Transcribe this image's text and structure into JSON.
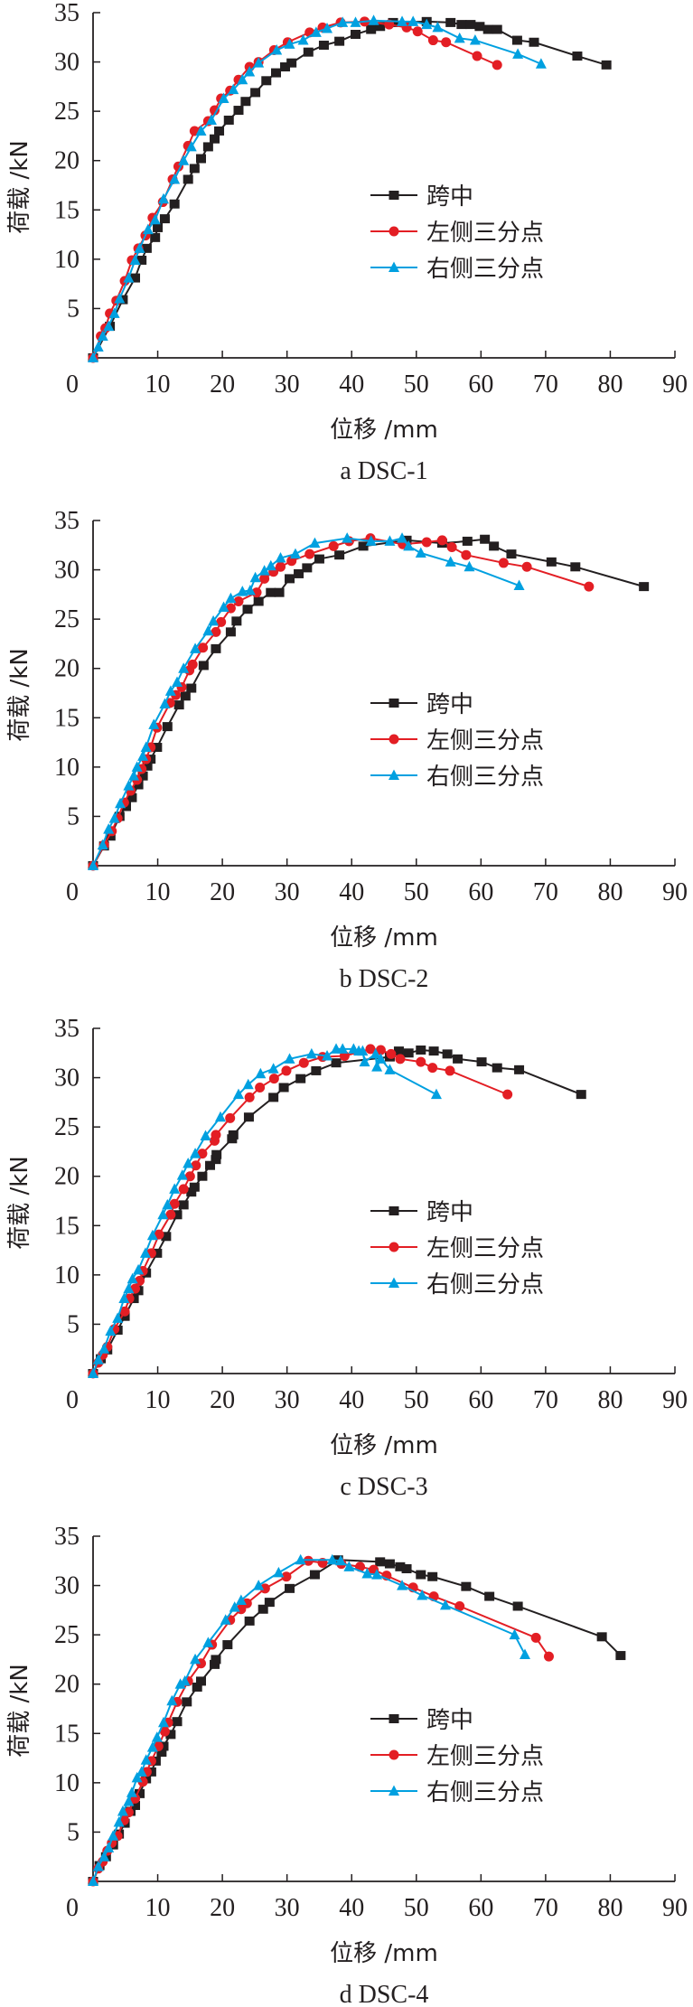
{
  "colors": {
    "axis": "#231f20",
    "midspan": "#231f20",
    "left": "#e31e24",
    "right": "#00a0e0"
  },
  "chart_data": [
    {
      "type": "line",
      "title": "a DSC-1",
      "xlabel": "位移 /mm",
      "ylabel": "荷载 /kN",
      "xlim": [
        0,
        90
      ],
      "ylim": [
        0,
        35
      ],
      "xticks": [
        "0",
        "10",
        "20",
        "30",
        "40",
        "50",
        "60",
        "70",
        "80",
        "90"
      ],
      "yticks": [
        "5",
        "10",
        "15",
        "20",
        "25",
        "30",
        "35"
      ],
      "grid": false,
      "legend_position": "center-right",
      "series": [
        {
          "name": "跨中",
          "marker": "square",
          "x": [
            0,
            2.6,
            4.6,
            6.5,
            7.5,
            8.3,
            9.6,
            10,
            11.1,
            12.6,
            14.7,
            15.7,
            16.7,
            17.8,
            18.8,
            19.5,
            21,
            22.5,
            23.6,
            25.1,
            26.8,
            28.3,
            29.7,
            30.7,
            33.3,
            35.7,
            38.1,
            40.6,
            43,
            44.4,
            46.4,
            51.6,
            55.3,
            57,
            58.4,
            59.8,
            61.1,
            62.5,
            65.6,
            68.2,
            74.9,
            79.4
          ],
          "y": [
            0,
            3.2,
            5.9,
            8.1,
            9.9,
            11.1,
            12.2,
            13.2,
            14.1,
            15.6,
            18.1,
            19.2,
            20.2,
            21.4,
            22.2,
            23,
            24.1,
            25.1,
            26,
            26.9,
            28.1,
            28.9,
            29.5,
            29.9,
            31,
            31.7,
            32.1,
            32.8,
            33.3,
            33.6,
            34,
            34.1,
            34,
            33.8,
            33.8,
            33.6,
            33.3,
            33.3,
            32.2,
            32,
            30.6,
            29.7
          ]
        },
        {
          "name": "左侧三分点",
          "marker": "circle",
          "x": [
            0,
            1.2,
            1.9,
            2.6,
            3.6,
            4.9,
            6,
            7,
            8.1,
            9.2,
            10.8,
            12.3,
            13.2,
            14.7,
            15.7,
            17.8,
            18.8,
            19.8,
            21.2,
            22.5,
            24.2,
            25.6,
            28,
            30.1,
            33.5,
            35.5,
            38.3,
            42,
            45.8,
            48.5,
            50.2,
            52.6,
            54.6,
            59.4,
            62.5
          ],
          "y": [
            0,
            2.2,
            3,
            4.5,
            5.8,
            7.8,
            9.9,
            11.1,
            12.4,
            14.2,
            15.8,
            18.1,
            19.4,
            21.5,
            23,
            24,
            25.1,
            26.3,
            27.1,
            28.2,
            29.5,
            30,
            31.2,
            32,
            33,
            33.5,
            34,
            34.1,
            33.8,
            33.5,
            33.1,
            32.2,
            32,
            30.6,
            29.7
          ]
        },
        {
          "name": "右侧三分点",
          "marker": "triangle",
          "x": [
            0,
            0.8,
            1.5,
            2.4,
            3.3,
            4.1,
            5.5,
            6.5,
            7.2,
            8.5,
            9.6,
            10.9,
            12.6,
            14,
            15.2,
            16.7,
            18.3,
            20.2,
            21.7,
            23.1,
            24.2,
            25.6,
            28.4,
            30.4,
            32.5,
            34.5,
            36.2,
            38.6,
            40.6,
            43.4,
            47.8,
            49.5,
            51.6,
            53.3,
            56.7,
            59.1,
            65.7,
            69.3
          ],
          "y": [
            0,
            1.1,
            2.2,
            3.2,
            4.5,
            6,
            8.1,
            9.9,
            11.1,
            13,
            14,
            16.1,
            18.1,
            20,
            21.4,
            23,
            24.1,
            26.3,
            27.2,
            28.2,
            29,
            29.9,
            31.2,
            31.8,
            32.2,
            33,
            33.4,
            34,
            34,
            34.2,
            34.1,
            34.1,
            33.8,
            33.5,
            32.4,
            32.2,
            30.8,
            29.8
          ]
        }
      ]
    },
    {
      "type": "line",
      "title": "b DSC-2",
      "xlabel": "位移 /mm",
      "ylabel": "荷载 /kN",
      "xlim": [
        0,
        90
      ],
      "ylim": [
        0,
        35
      ],
      "xticks": [
        "0",
        "10",
        "20",
        "30",
        "40",
        "50",
        "60",
        "70",
        "80",
        "90"
      ],
      "yticks": [
        "5",
        "10",
        "15",
        "20",
        "25",
        "30",
        "35"
      ],
      "grid": false,
      "legend_position": "center-right",
      "series": [
        {
          "name": "跨中",
          "marker": "square",
          "x": [
            0,
            1.7,
            2.7,
            4.1,
            5.1,
            6,
            7,
            7.7,
            8.4,
            8.9,
            9.9,
            11.5,
            13.3,
            14.3,
            15.2,
            17.1,
            19,
            21.3,
            22.2,
            23.9,
            25.6,
            27.5,
            28.8,
            30.4,
            31.8,
            33.1,
            35,
            38.1,
            41.8,
            48.5,
            54,
            57.9,
            60.6,
            62,
            64.7,
            70.9,
            74.6,
            85.2
          ],
          "y": [
            0,
            2,
            3,
            5,
            6,
            6.9,
            8.2,
            9.1,
            10.1,
            10.8,
            12,
            14.1,
            16.3,
            17.2,
            18,
            20.3,
            22,
            23.7,
            24.8,
            26,
            26.8,
            27.7,
            27.7,
            29.1,
            29.6,
            30.2,
            31.1,
            31.5,
            32.4,
            33,
            32.7,
            32.9,
            33.1,
            32.4,
            31.6,
            30.8,
            30.3,
            28.3
          ]
        },
        {
          "name": "左侧三分点",
          "marker": "circle",
          "x": [
            0,
            1.7,
            2.9,
            3.8,
            4.8,
            5.8,
            6.8,
            7.5,
            8.2,
            8.9,
            9.9,
            11.9,
            12.8,
            13.7,
            14.9,
            15.4,
            17,
            19,
            19.8,
            21.3,
            22.5,
            25.3,
            26.5,
            27.9,
            29,
            30.7,
            33.5,
            37.2,
            39.6,
            42.9,
            47.9,
            51.6,
            54,
            55.5,
            57.7,
            63.5,
            67.1,
            76.7
          ],
          "y": [
            0,
            2.1,
            3.5,
            4.8,
            6.4,
            7.6,
            8.7,
            9.8,
            10.8,
            12,
            14,
            16.5,
            17.3,
            18.1,
            19.8,
            20.4,
            22.1,
            23.7,
            24.7,
            26.1,
            26.8,
            27.7,
            29.1,
            29.8,
            30.3,
            30.9,
            31.6,
            32.4,
            32.9,
            33.2,
            32.6,
            32.8,
            33,
            32.3,
            31.5,
            30.7,
            30.3,
            28.3
          ]
        },
        {
          "name": "右侧三分点",
          "marker": "triangle",
          "x": [
            0,
            1.5,
            2.4,
            3.3,
            4.2,
            5.5,
            6.3,
            6.8,
            7.7,
            8.2,
            9.4,
            11.1,
            12,
            13,
            14,
            15.8,
            17.8,
            18.6,
            20.2,
            21.3,
            23.1,
            24.3,
            25.1,
            26.5,
            27.5,
            29,
            31.3,
            34.3,
            39.3,
            43,
            45.9,
            47.8,
            48.8,
            50.7,
            55.3,
            58.2,
            65.9
          ],
          "y": [
            0,
            2.1,
            3.7,
            4.8,
            6.3,
            8.1,
            9.1,
            10,
            11.1,
            12,
            14.3,
            16.4,
            17.7,
            18.6,
            20,
            22,
            23.8,
            24.8,
            26.2,
            27.1,
            27.8,
            27.9,
            29.2,
            29.9,
            30.4,
            31.2,
            31.6,
            32.7,
            33.2,
            32.9,
            32.9,
            33.2,
            32.4,
            31.7,
            30.8,
            30.3,
            28.4
          ]
        }
      ]
    },
    {
      "type": "line",
      "title": "c DSC-3",
      "xlabel": "位移 /mm",
      "ylabel": "荷载 /kN",
      "xlim": [
        0,
        90
      ],
      "ylim": [
        0,
        35
      ],
      "xticks": [
        "0",
        "10",
        "20",
        "30",
        "40",
        "50",
        "60",
        "70",
        "80",
        "90"
      ],
      "yticks": [
        "5",
        "10",
        "15",
        "20",
        "25",
        "30",
        "35"
      ],
      "grid": false,
      "legend_position": "center-right",
      "series": [
        {
          "name": "跨中",
          "marker": "square",
          "x": [
            0,
            1.2,
            2.2,
            3.8,
            4.9,
            6.3,
            7,
            8.2,
            9.9,
            11.3,
            13,
            14,
            15.2,
            15.7,
            16.9,
            18.1,
            19,
            19.1,
            21.5,
            21.7,
            24.1,
            27.9,
            29.5,
            32.1,
            34.5,
            37.6,
            45.9,
            47.3,
            48.8,
            50.7,
            52.7,
            54.8,
            56.4,
            60.1,
            62.5,
            65.9,
            75.5
          ],
          "y": [
            0,
            1.5,
            2.4,
            4.4,
            5.8,
            7.6,
            8.4,
            10.2,
            12.2,
            13.9,
            16.1,
            17.1,
            18.4,
            18.9,
            20,
            21.1,
            21.7,
            22.2,
            23.8,
            24.2,
            26,
            28,
            29,
            29.9,
            30.7,
            31.5,
            32.1,
            32.7,
            32.5,
            32.8,
            32.7,
            32.4,
            31.9,
            31.6,
            31,
            30.8,
            28.3
          ]
        },
        {
          "name": "左侧三分点",
          "marker": "circle",
          "x": [
            0,
            0.8,
            1.5,
            2.2,
            3.3,
            4.9,
            5.6,
            6.5,
            7.2,
            7.7,
            9,
            10.2,
            12,
            12.6,
            14,
            15,
            15.9,
            16.9,
            18.8,
            19,
            21.2,
            24.2,
            25.8,
            28,
            29.9,
            32.6,
            35.5,
            38.9,
            42.9,
            44.5,
            46.1,
            47.5,
            50.7,
            52.5,
            55.2,
            64.1
          ],
          "y": [
            0,
            1.1,
            1.9,
            2.7,
            4.5,
            6.3,
            7.6,
            8.6,
            9.4,
            10.4,
            12.2,
            14.1,
            16.1,
            17.2,
            18.7,
            20,
            21.1,
            22.3,
            23.6,
            24.2,
            25.9,
            28,
            29,
            29.9,
            30.7,
            31.5,
            32.1,
            32.2,
            32.9,
            32.8,
            32.4,
            31.9,
            31.6,
            31,
            30.7,
            28.3
          ]
        },
        {
          "name": "右侧三分点",
          "marker": "triangle",
          "x": [
            0,
            0.8,
            1.7,
            2.7,
            3.8,
            4.8,
            5.5,
            6.1,
            7,
            8.1,
            9.2,
            10.8,
            11.5,
            12.6,
            13.8,
            14.7,
            15.8,
            17.4,
            19.7,
            22.5,
            24,
            25.9,
            27.9,
            30.4,
            33.8,
            36.2,
            37.6,
            38.6,
            40.3,
            41.1,
            41.7,
            42,
            43.7,
            43.9,
            44.5,
            45.9,
            53.1
          ],
          "y": [
            0,
            1.4,
            2.5,
            4.3,
            5.6,
            7.6,
            8.6,
            9.6,
            10.5,
            12.2,
            14,
            16.1,
            17.1,
            18.7,
            20.1,
            21.3,
            22.3,
            24.1,
            26,
            28.3,
            29.3,
            30.4,
            30.9,
            31.9,
            32.4,
            32.2,
            32.9,
            32.9,
            32.9,
            32.7,
            32.7,
            31.6,
            32.4,
            31.1,
            31.9,
            30.8,
            28.3
          ]
        }
      ]
    },
    {
      "type": "line",
      "title": "d DSC-4",
      "xlabel": "位移 /mm",
      "ylabel": "荷载 /kN",
      "xlim": [
        0,
        90
      ],
      "ylim": [
        0,
        35
      ],
      "xticks": [
        "0",
        "10",
        "20",
        "30",
        "40",
        "50",
        "60",
        "70",
        "80",
        "90"
      ],
      "yticks": [
        "5",
        "10",
        "15",
        "20",
        "25",
        "30",
        "35"
      ],
      "grid": false,
      "legend_position": "center-right",
      "series": [
        {
          "name": "跨中",
          "marker": "square",
          "x": [
            0,
            1,
            2,
            3.1,
            4,
            4.9,
            5.8,
            6.5,
            7.2,
            8.2,
            9,
            9.7,
            10.6,
            10.9,
            12,
            13,
            14.5,
            16.1,
            16.7,
            18.8,
            19,
            20.8,
            24.2,
            26.3,
            27.3,
            30.4,
            34.3,
            37.9,
            44.4,
            45.9,
            47.5,
            48.5,
            50.7,
            52.5,
            57.7,
            61.3,
            65.7,
            78.7,
            81.6
          ],
          "y": [
            0,
            1.6,
            2.5,
            3.7,
            4.8,
            5.9,
            7.1,
            7.7,
            8.9,
            10.4,
            11.1,
            12.2,
            13.1,
            13.7,
            14.9,
            16.2,
            18.2,
            19.7,
            20.3,
            22,
            22.5,
            24,
            26.4,
            27.6,
            28.3,
            29.7,
            31.1,
            32.6,
            32.4,
            32.2,
            31.9,
            31.7,
            31.1,
            30.9,
            29.9,
            28.9,
            27.9,
            24.8,
            22.9
          ]
        },
        {
          "name": "左侧三分点",
          "marker": "circle",
          "x": [
            0,
            0.8,
            1.5,
            2.2,
            2.9,
            3.8,
            4.8,
            5.5,
            6.5,
            7.7,
            8.3,
            9,
            10.1,
            11.1,
            11.6,
            13,
            14.7,
            16.7,
            18.4,
            21.2,
            22.9,
            23.8,
            26.6,
            29.9,
            33.3,
            35.5,
            38.4,
            41.3,
            43.4,
            45.4,
            49.5,
            52.7,
            56.7,
            68.5,
            70.5
          ],
          "y": [
            0,
            1.3,
            2,
            3.1,
            3.9,
            4.6,
            6.2,
            7,
            8.4,
            10.1,
            11.1,
            12.2,
            13.7,
            15.2,
            16.1,
            18.2,
            20.3,
            22.1,
            24,
            26.5,
            27.6,
            28.2,
            29.7,
            30.9,
            32.5,
            32.3,
            32.2,
            31.9,
            31.6,
            31,
            29.8,
            28.9,
            27.9,
            24.7,
            22.8
          ]
        },
        {
          "name": "右侧三分点",
          "marker": "triangle",
          "x": [
            0,
            0.8,
            1.7,
            2.4,
            3.1,
            4,
            4.6,
            5.5,
            6,
            6.8,
            7.5,
            8.2,
            9.2,
            9.9,
            10.9,
            12.2,
            13.5,
            14.2,
            15.8,
            17.8,
            20.5,
            21.9,
            22.9,
            25.6,
            28.7,
            32.1,
            37,
            38.3,
            39.6,
            42.4,
            43.9,
            47.8,
            50.9,
            54.5,
            65.2,
            66.8
          ],
          "y": [
            0,
            1.5,
            2.5,
            3.4,
            4.6,
            6,
            7.1,
            8.1,
            9,
            10.5,
            11.1,
            12.3,
            13.6,
            14.6,
            16.1,
            18.3,
            20,
            20.3,
            22.5,
            24.2,
            26.5,
            27.8,
            28.5,
            30,
            31.3,
            32.6,
            32.6,
            32.5,
            31.9,
            31.2,
            31.1,
            30,
            29,
            28,
            25,
            23
          ]
        }
      ]
    }
  ]
}
